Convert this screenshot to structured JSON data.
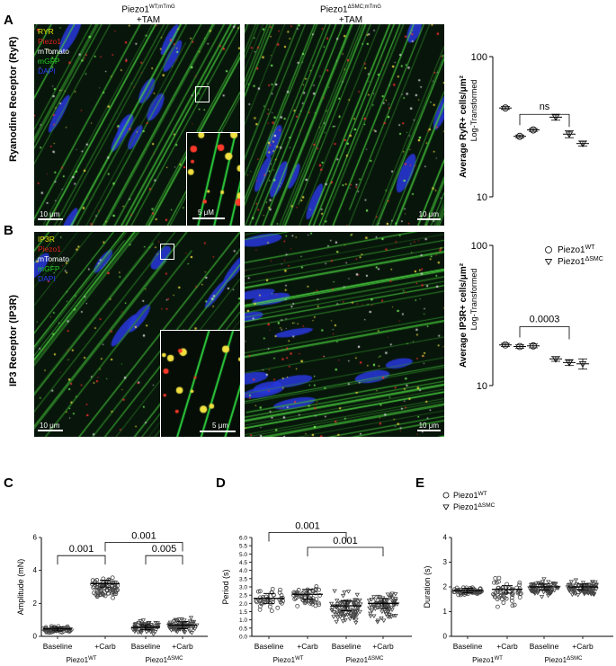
{
  "figure": {
    "headers": {
      "wt": {
        "main": "Piezo1",
        "sup": "WT;mTmG",
        "sub": "+TAM"
      },
      "smc": {
        "main": "Piezo1",
        "sup": "ΔSMC;mTmG",
        "sub": "+TAM"
      }
    },
    "row_labels": {
      "a": "Ryanodine Receptor (RyR)",
      "b": "IP3 Receptor (IP3R)"
    },
    "letters": {
      "A": "A",
      "B": "B",
      "C": "C",
      "D": "D",
      "E": "E"
    },
    "channels_a": [
      {
        "label": "RYR",
        "color": "#e6e600"
      },
      {
        "label": "Piezo1",
        "color": "#e02020"
      },
      {
        "label": "mTomato",
        "color": "#ffffff"
      },
      {
        "label": "mGFP",
        "color": "#22cc22"
      },
      {
        "label": "DAPI",
        "color": "#2a3cff"
      }
    ],
    "channels_b": [
      {
        "label": "IP3R",
        "color": "#e6e600"
      },
      {
        "label": "Piezo1",
        "color": "#e02020"
      },
      {
        "label": "mTomato",
        "color": "#ffffff"
      },
      {
        "label": "mGFP",
        "color": "#22cc22"
      },
      {
        "label": "DAPI",
        "color": "#2a3cff"
      }
    ],
    "scales": {
      "a_wt": "10 μm",
      "a_inset": "5 μM",
      "a_smc": "10 μm",
      "b_wt": "10 μm",
      "b_inset": "5 μm",
      "b_smc": "10 μm"
    }
  },
  "chart_data": [
    {
      "id": "A",
      "type": "scatter",
      "ylabel": "Average RyR+ cells/μm²",
      "ylabel2": "Log-Transformed",
      "yscale": "log",
      "ylim": [
        10,
        100
      ],
      "yticks": [
        "100",
        "10"
      ],
      "points": [
        {
          "marker": "circle",
          "mean": 43,
          "err": 1.0
        },
        {
          "marker": "circle",
          "mean": 27,
          "err": 0.6
        },
        {
          "marker": "circle",
          "mean": 30,
          "err": 0.7
        },
        {
          "marker": "triangle",
          "mean": 37,
          "err": 1.8
        },
        {
          "marker": "triangle",
          "mean": 28,
          "err": 1.6
        },
        {
          "marker": "triangle",
          "mean": 24,
          "err": 1.0
        }
      ],
      "annotation": {
        "text": "ns",
        "from": 1,
        "to": 4
      }
    },
    {
      "id": "B",
      "type": "scatter",
      "ylabel": "Average IP3R+ cells/μm²",
      "ylabel2": "Log-Transformed",
      "yscale": "log",
      "ylim": [
        10,
        100
      ],
      "yticks": [
        "100",
        "10"
      ],
      "legend": [
        {
          "marker": "circle",
          "label": "Piezo1",
          "sup": "WT"
        },
        {
          "marker": "triangle",
          "label": "Piezo1",
          "sup": "ΔSMC"
        }
      ],
      "legend_position": "top-right",
      "points": [
        {
          "marker": "circle",
          "mean": 19.5,
          "err": 0.5
        },
        {
          "marker": "circle",
          "mean": 19.0,
          "err": 0.5
        },
        {
          "marker": "circle",
          "mean": 19.2,
          "err": 0.6
        },
        {
          "marker": "triangle",
          "mean": 15.5,
          "err": 0.6
        },
        {
          "marker": "triangle",
          "mean": 14.6,
          "err": 0.7
        },
        {
          "marker": "triangle",
          "mean": 14.3,
          "err": 1.2
        }
      ],
      "annotation": {
        "text": "0.0003",
        "from": 1,
        "to": 4
      }
    },
    {
      "id": "C",
      "type": "scatter",
      "ylabel": "Amplitude (mN)",
      "ylim": [
        0,
        6
      ],
      "yticks": [
        0,
        2,
        4,
        6
      ],
      "categories": [
        "Baseline",
        "+Carb",
        "Baseline",
        "+Carb"
      ],
      "groups": [
        {
          "label": "Piezo1",
          "sup": "WT"
        },
        {
          "label": "Piezo1",
          "sup": "ΔSMC"
        }
      ],
      "series": [
        {
          "marker": "circle",
          "mean": 0.45,
          "sem": 0.04,
          "min": 0.0,
          "max": 1.0,
          "n": 60
        },
        {
          "marker": "circle",
          "mean": 3.2,
          "sem": 0.07,
          "min": 1.6,
          "max": 4.5,
          "n": 80
        },
        {
          "marker": "triangle",
          "mean": 0.55,
          "sem": 0.05,
          "min": 0.0,
          "max": 1.8,
          "n": 70
        },
        {
          "marker": "triangle",
          "mean": 0.68,
          "sem": 0.07,
          "min": 0.0,
          "max": 1.9,
          "n": 80
        }
      ],
      "brackets": [
        {
          "text": "0.001",
          "from": 0,
          "to": 1,
          "y": 4.9
        },
        {
          "text": "0.001",
          "from": 1,
          "to": 3,
          "y": 5.7
        },
        {
          "text": "0.005",
          "from": 2,
          "to": 3,
          "y": 4.9
        }
      ]
    },
    {
      "id": "D",
      "type": "scatter",
      "ylabel": "Period (s)",
      "ylim": [
        0,
        6
      ],
      "yticks": [
        "0.0",
        "0.5",
        "1.0",
        "1.5",
        "2.0",
        "2.5",
        "3.0",
        "3.5",
        "4.0",
        "4.5",
        "5.0",
        "5.5",
        "6.0"
      ],
      "categories": [
        "Baseline",
        "+Carb",
        "Baseline",
        "+Carb"
      ],
      "groups": [
        {
          "label": "Piezo1",
          "sup": "WT"
        },
        {
          "label": "Piezo1",
          "sup": "ΔSMC"
        }
      ],
      "series": [
        {
          "marker": "circle",
          "mean": 2.3,
          "sem": 0.1,
          "min": 1.3,
          "max": 4.0,
          "n": 40
        },
        {
          "marker": "circle",
          "mean": 2.55,
          "sem": 0.1,
          "min": 1.2,
          "max": 4.2,
          "n": 55
        },
        {
          "marker": "triangle",
          "mean": 1.85,
          "sem": 0.1,
          "min": 0.0,
          "max": 4.2,
          "n": 90
        },
        {
          "marker": "triangle",
          "mean": 2.0,
          "sem": 0.1,
          "min": 0.2,
          "max": 4.6,
          "n": 80
        }
      ],
      "brackets": [
        {
          "text": "0.001",
          "from": 0,
          "to": 2,
          "y": 6.3
        },
        {
          "text": "0.001",
          "from": 1,
          "to": 3,
          "y": 5.4
        }
      ]
    },
    {
      "id": "E",
      "type": "scatter",
      "ylabel": "Duration (s)",
      "ylim": [
        0,
        4
      ],
      "yticks": [
        0,
        1,
        2,
        3,
        4
      ],
      "categories": [
        "Baseline",
        "+Carb",
        "Baseline",
        "+Carb"
      ],
      "groups": [
        {
          "label": "Piezo1",
          "sup": "WT"
        },
        {
          "label": "Piezo1",
          "sup": "ΔSMC"
        }
      ],
      "legend": [
        {
          "marker": "circle",
          "label": "Piezo1",
          "sup": "WT"
        },
        {
          "marker": "triangle",
          "label": "Piezo1",
          "sup": "ΔSMC"
        }
      ],
      "legend_position": "top-left",
      "series": [
        {
          "marker": "circle",
          "mean": 1.85,
          "sem": 0.03,
          "min": 1.5,
          "max": 2.2,
          "n": 60
        },
        {
          "marker": "circle",
          "mean": 1.9,
          "sem": 0.05,
          "min": 0.8,
          "max": 3.2,
          "n": 55
        },
        {
          "marker": "triangle",
          "mean": 2.0,
          "sem": 0.04,
          "min": 1.3,
          "max": 2.8,
          "n": 80
        },
        {
          "marker": "triangle",
          "mean": 2.0,
          "sem": 0.04,
          "min": 1.3,
          "max": 2.8,
          "n": 80
        }
      ]
    }
  ]
}
